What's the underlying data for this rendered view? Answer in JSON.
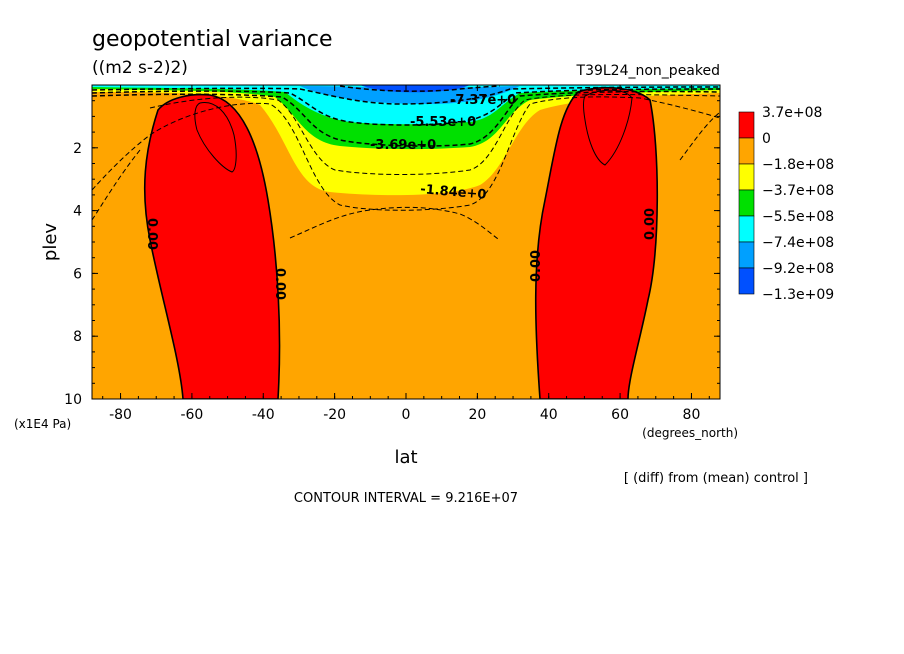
{
  "header": {
    "title": "geopotential variance",
    "units": "((m2 s-2)2)",
    "run_label": "T39L24_non_peaked"
  },
  "footer": {
    "diff_note": "[ (diff) from (mean) control ]",
    "contour_interval": "CONTOUR INTERVAL = 9.216E+07"
  },
  "chart_data": {
    "type": "contour",
    "title": "geopotential variance",
    "xlabel": "lat",
    "xunits": "(degrees_north)",
    "ylabel": "plev",
    "yunits": "(x1E4 Pa)",
    "xlim": [
      -88,
      88
    ],
    "ylim": [
      10,
      0
    ],
    "x_ticks": [
      -80,
      -60,
      -40,
      -20,
      0,
      20,
      40,
      60,
      80
    ],
    "x_tick_labels": [
      "-80",
      "-60",
      "-40",
      "-20",
      "0",
      "20",
      "40",
      "60",
      "80"
    ],
    "y_ticks": [
      2,
      4,
      6,
      8,
      10
    ],
    "y_tick_labels": [
      "2",
      "4",
      "6",
      "8",
      "10"
    ],
    "contour_interval": 92160000,
    "colorbar": {
      "labels": [
        "3.7e+08",
        "0",
        "−1.8e+08",
        "−3.7e+08",
        "−5.5e+08",
        "−7.4e+08",
        "−9.2e+08",
        "−1.3e+09"
      ],
      "colors": [
        "#ff0000",
        "#ffa500",
        "#ffff00",
        "#00e000",
        "#00ffff",
        "#00a0ff",
        "#0050ff"
      ]
    },
    "contour_labels": [
      "-7.37e+0",
      "-5.53e+0",
      "-3.69e+0",
      "-1.84e+0",
      "0.00",
      "0.00",
      "0.00",
      "0.00"
    ],
    "positive_regions": [
      {
        "name": "southern hemisphere maximum",
        "lat_range": [
          -75,
          -36
        ],
        "plev_range": [
          0.3,
          10
        ]
      },
      {
        "name": "northern hemisphere maximum",
        "lat_range": [
          37,
          70
        ],
        "plev_range": [
          0.2,
          10
        ]
      }
    ],
    "negative_regions": [
      {
        "name": "upper-level tropical minimum",
        "lat_range": [
          -35,
          35
        ],
        "plev_range": [
          0,
          3.6
        ]
      }
    ]
  }
}
